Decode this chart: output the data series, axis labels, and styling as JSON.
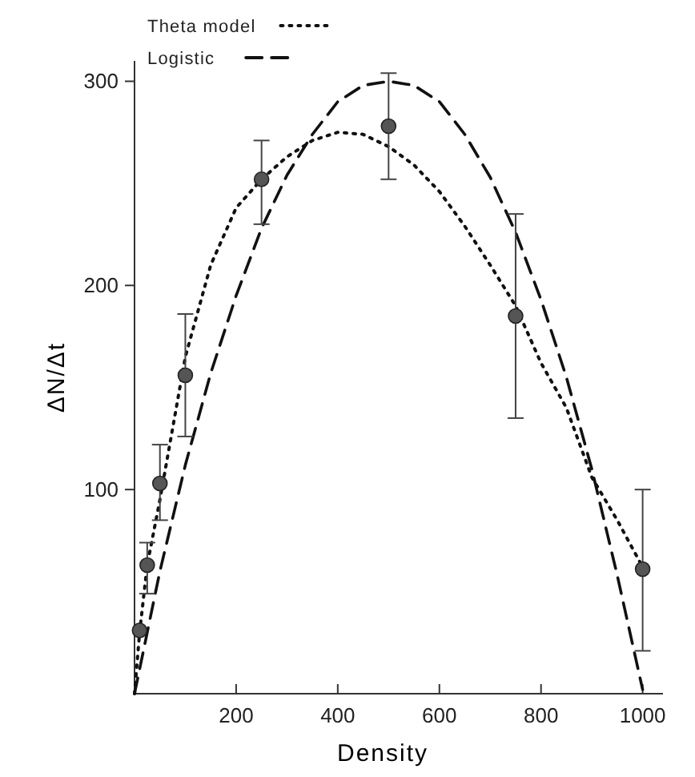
{
  "chart_data": {
    "type": "line",
    "xlabel": "Density",
    "ylabel": "ΔN/Δt",
    "xlim": [
      0,
      1040
    ],
    "ylim": [
      0,
      310
    ],
    "xticks": [
      200,
      400,
      600,
      800,
      1000
    ],
    "yticks": [
      100,
      200,
      300
    ],
    "legend": "top left",
    "grid": false,
    "series": [
      {
        "name": "Theta model",
        "line_style": "dotted",
        "marker": "none",
        "color": "#111111",
        "x": [
          0,
          10,
          25,
          50,
          100,
          150,
          200,
          250,
          300,
          350,
          400,
          450,
          500,
          550,
          600,
          650,
          700,
          750,
          800,
          850,
          900,
          950,
          1000
        ],
        "values": [
          0,
          30,
          63,
          95,
          165,
          210,
          238,
          252,
          263,
          271,
          275,
          274,
          268,
          259,
          246,
          229,
          210,
          190,
          162,
          140,
          106,
          85,
          62
        ]
      },
      {
        "name": "Logistic",
        "line_style": "dashed",
        "marker": "none",
        "color": "#111111",
        "x": [
          0,
          50,
          100,
          150,
          200,
          250,
          300,
          350,
          400,
          450,
          500,
          550,
          600,
          650,
          700,
          750,
          800,
          850,
          900,
          950,
          1000
        ],
        "values": [
          0,
          60,
          112,
          157,
          195,
          228,
          254,
          274,
          290,
          298,
          300,
          298,
          290,
          274,
          253,
          226,
          193,
          155,
          110,
          58,
          2
        ]
      },
      {
        "type": "scatter",
        "marker": "circle",
        "color": "#555555",
        "x": [
          10,
          25,
          50,
          100,
          250,
          500,
          750,
          1000
        ],
        "values": [
          31,
          63,
          103,
          156,
          252,
          278,
          185,
          61
        ],
        "errors": [
          null,
          [
            49,
            74
          ],
          [
            85,
            122
          ],
          [
            126,
            186
          ],
          [
            230,
            271
          ],
          [
            252,
            304
          ],
          [
            135,
            235
          ],
          [
            21,
            100
          ]
        ]
      }
    ]
  }
}
